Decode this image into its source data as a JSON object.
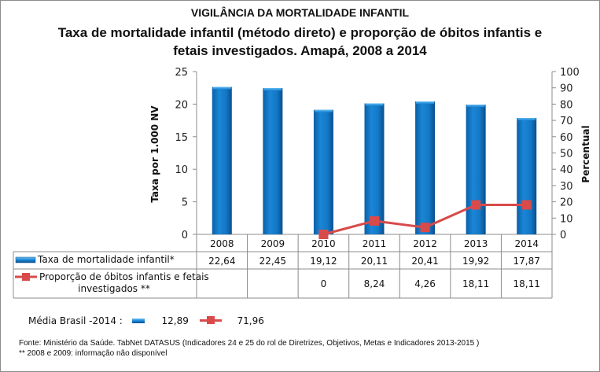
{
  "header": {
    "title": "VIGILÂNCIA DA MORTALIDADE INFANTIL",
    "subtitle_line1": "Taxa de mortalidade infantil (método direto) e proporção de óbitos infantis e",
    "subtitle_line2": "fetais investigados. Amapá, 2008 a 2014"
  },
  "chart_data": {
    "type": "bar",
    "title": "Taxa de mortalidade infantil (método direto) e proporção de óbitos infantis e fetais investigados. Amapá, 2008 a 2014",
    "categories": [
      "2008",
      "2009",
      "2010",
      "2011",
      "2012",
      "2013",
      "2014"
    ],
    "series": [
      {
        "name": "Taxa de mortalidade infantil*",
        "type": "bar",
        "axis": "left",
        "color": "#1f7fd0",
        "values": [
          22.64,
          22.45,
          19.12,
          20.11,
          20.41,
          19.92,
          17.87
        ],
        "labels": [
          "22,64",
          "22,45",
          "19,12",
          "20,11",
          "20,41",
          "19,92",
          "17,87"
        ]
      },
      {
        "name": "Proporção de óbitos infantis e fetais investigados **",
        "type": "line",
        "axis": "right",
        "color": "#d94a4a",
        "values": [
          null,
          null,
          0,
          8.24,
          4.26,
          18.11,
          18.11
        ],
        "labels": [
          "",
          "",
          "0",
          "8,24",
          "4,26",
          "18,11",
          "18,11"
        ]
      }
    ],
    "ylabel": "Taxa por 1.000 NV",
    "y2label": "Percentual",
    "ylim": [
      0,
      25
    ],
    "y2lim": [
      0,
      100
    ],
    "yticks": [
      "0",
      "5",
      "10",
      "15",
      "20",
      "25"
    ],
    "y2ticks": [
      "0",
      "10",
      "20",
      "30",
      "40",
      "50",
      "60",
      "70",
      "80",
      "90",
      "100"
    ],
    "grid": false,
    "legend": "data-table-below"
  },
  "legend_rows": {
    "bar_label": "Taxa de mortalidade infantil*",
    "line_label_1": "Proporção de óbitos infantis e fetais",
    "line_label_2": "investigados **"
  },
  "average": {
    "label": "Média Brasil -2014 :",
    "bar_value": "12,89",
    "line_value": "71,96"
  },
  "footer": {
    "source": "Fonte: Ministério da Saúde. TabNet DATASUS (Indicadores 24 e 25 do rol de Diretrizes, Objetivos, Metas e Indicadores 2013-2015 )",
    "note": "** 2008 e 2009: informação não disponível"
  }
}
